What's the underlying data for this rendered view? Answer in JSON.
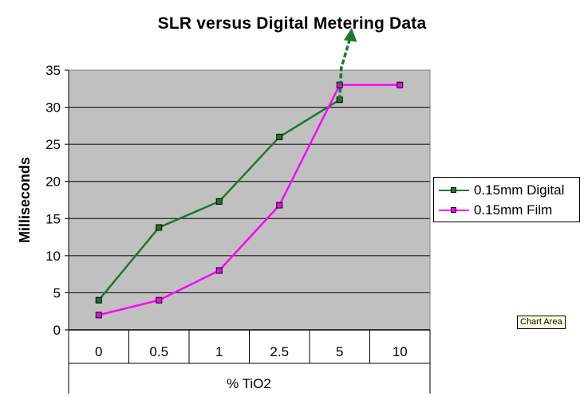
{
  "chart_data": {
    "type": "line",
    "title": "SLR versus Digital Metering Data",
    "xlabel": "% TiO2",
    "ylabel": "Milliseconds",
    "categories": [
      "0",
      "0.5",
      "1",
      "2.5",
      "5",
      "10"
    ],
    "ylim": [
      0,
      35
    ],
    "yticks": [
      0,
      5,
      10,
      15,
      20,
      25,
      30,
      35
    ],
    "grid": true,
    "legend_position": "right",
    "series": [
      {
        "name": "0.15mm Digital",
        "values": [
          4,
          13.8,
          17.3,
          26,
          31,
          null
        ],
        "color": "#1a7a2a"
      },
      {
        "name": "0.15mm Film",
        "values": [
          2,
          4,
          8,
          16.8,
          33,
          33
        ],
        "color": "#ff00ff"
      }
    ]
  },
  "tooltip": {
    "text": "Chart Area"
  },
  "colors": {
    "plot_background": "#c0c0c0",
    "arrow": "#1a7a2a"
  }
}
